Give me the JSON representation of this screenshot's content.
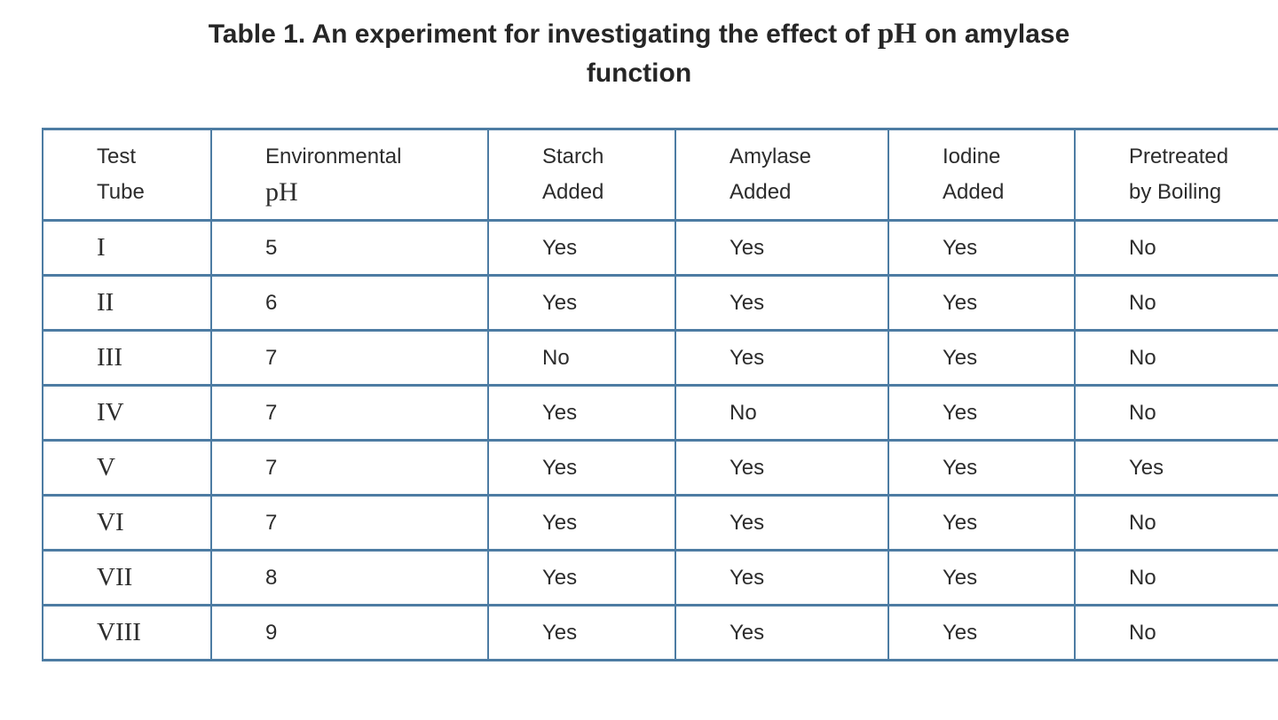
{
  "title": {
    "prefix": "Table 1. An experiment for investigating the effect of",
    "ph": "pH",
    "suffix": "on amylase",
    "line2": "function"
  },
  "table": {
    "headers": [
      {
        "line1": "Test",
        "line2": "Tube"
      },
      {
        "line1": "Environmental",
        "line2": "pH"
      },
      {
        "line1": "Starch",
        "line2": "Added"
      },
      {
        "line1": "Amylase",
        "line2": "Added"
      },
      {
        "line1": "Iodine",
        "line2": "Added"
      },
      {
        "line1": "Pretreated",
        "line2": "by Boiling"
      }
    ],
    "rows": [
      {
        "cells": [
          "I",
          "5",
          "Yes",
          "Yes",
          "Yes",
          "No"
        ]
      },
      {
        "cells": [
          "II",
          "6",
          "Yes",
          "Yes",
          "Yes",
          "No"
        ]
      },
      {
        "cells": [
          "III",
          "7",
          "No",
          "Yes",
          "Yes",
          "No"
        ]
      },
      {
        "cells": [
          "IV",
          "7",
          "Yes",
          "No",
          "Yes",
          "No"
        ]
      },
      {
        "cells": [
          "V",
          "7",
          "Yes",
          "Yes",
          "Yes",
          "Yes"
        ]
      },
      {
        "cells": [
          "VI",
          "7",
          "Yes",
          "Yes",
          "Yes",
          "No"
        ]
      },
      {
        "cells": [
          "VII",
          "8",
          "Yes",
          "Yes",
          "Yes",
          "No"
        ]
      },
      {
        "cells": [
          "VIII",
          "9",
          "Yes",
          "Yes",
          "Yes",
          "No"
        ]
      }
    ]
  },
  "colors": {
    "border": "#4d7ca3",
    "text": "#2c2c2c",
    "title": "#262626",
    "background": "#ffffff"
  }
}
